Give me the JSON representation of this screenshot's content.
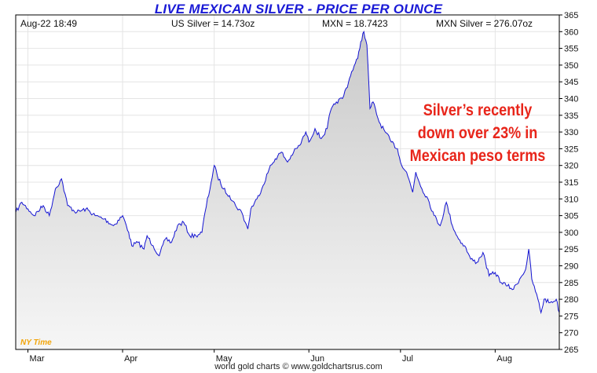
{
  "header": {
    "date_time": "Aug-22  18:49",
    "us_silver": "US Silver = 14.73oz",
    "mxn_rate": "MXN = 18.7423",
    "mxn_silver": "MXN Silver = 276.07oz"
  },
  "annotation": {
    "line1": "Silver’s recently",
    "line2": "down over 23% in",
    "line3": "Mexican peso terms"
  },
  "timezone_label": "NY Time",
  "credit": "world gold charts © www.goldchartsrus.com",
  "colors": {
    "title": "#1a1ad6",
    "line": "#1414d2",
    "area_fill": "#d9d9d9",
    "annotation": "#e8251a",
    "timezone_label": "#f2a50a"
  },
  "chart_data": {
    "type": "line",
    "title": "LIVE MEXICAN SILVER - PRICE PER OUNCE",
    "ylim": [
      265,
      365
    ],
    "y_ticks": [
      265,
      270,
      275,
      280,
      285,
      290,
      295,
      300,
      305,
      310,
      315,
      320,
      325,
      330,
      335,
      340,
      345,
      350,
      355,
      360,
      365
    ],
    "x_domain": [
      "2016-02-26",
      "2016-08-22"
    ],
    "x_ticks": [
      {
        "label": "Mar",
        "date": "2016-03-01"
      },
      {
        "label": "Apr",
        "date": "2016-04-01"
      },
      {
        "label": "May",
        "date": "2016-05-01"
      },
      {
        "label": "Jun",
        "date": "2016-06-01"
      },
      {
        "label": "Jul",
        "date": "2016-07-01"
      },
      {
        "label": "Aug",
        "date": "2016-08-01"
      }
    ],
    "grid": true,
    "area_fill": true,
    "series": [
      {
        "points": [
          [
            "2016-02-26",
            306
          ],
          [
            "2016-02-28",
            309
          ],
          [
            "2016-03-01",
            307
          ],
          [
            "2016-03-03",
            305
          ],
          [
            "2016-03-06",
            308
          ],
          [
            "2016-03-08",
            305
          ],
          [
            "2016-03-10",
            313
          ],
          [
            "2016-03-12",
            316
          ],
          [
            "2016-03-14",
            308
          ],
          [
            "2016-03-17",
            306
          ],
          [
            "2016-03-20",
            307
          ],
          [
            "2016-03-23",
            305
          ],
          [
            "2016-03-26",
            304
          ],
          [
            "2016-03-29",
            302
          ],
          [
            "2016-04-01",
            305
          ],
          [
            "2016-04-03",
            300
          ],
          [
            "2016-04-04",
            296
          ],
          [
            "2016-04-06",
            297
          ],
          [
            "2016-04-08",
            295
          ],
          [
            "2016-04-09",
            299
          ],
          [
            "2016-04-11",
            296
          ],
          [
            "2016-04-13",
            293
          ],
          [
            "2016-04-15",
            298
          ],
          [
            "2016-04-17",
            297
          ],
          [
            "2016-04-19",
            302
          ],
          [
            "2016-04-21",
            303
          ],
          [
            "2016-04-23",
            299
          ],
          [
            "2016-04-25",
            299
          ],
          [
            "2016-04-27",
            300
          ],
          [
            "2016-04-28",
            306
          ],
          [
            "2016-04-30",
            315
          ],
          [
            "2016-05-01",
            320
          ],
          [
            "2016-05-02",
            317
          ],
          [
            "2016-05-04",
            313
          ],
          [
            "2016-05-06",
            311
          ],
          [
            "2016-05-08",
            308
          ],
          [
            "2016-05-10",
            306
          ],
          [
            "2016-05-12",
            301
          ],
          [
            "2016-05-13",
            307
          ],
          [
            "2016-05-15",
            310
          ],
          [
            "2016-05-17",
            314
          ],
          [
            "2016-05-19",
            319
          ],
          [
            "2016-05-21",
            322
          ],
          [
            "2016-05-23",
            324
          ],
          [
            "2016-05-25",
            321
          ],
          [
            "2016-05-27",
            324
          ],
          [
            "2016-05-29",
            326
          ],
          [
            "2016-05-31",
            330
          ],
          [
            "2016-06-01",
            327
          ],
          [
            "2016-06-03",
            331
          ],
          [
            "2016-06-05",
            328
          ],
          [
            "2016-06-07",
            331
          ],
          [
            "2016-06-08",
            336
          ],
          [
            "2016-06-10",
            339
          ],
          [
            "2016-06-12",
            340
          ],
          [
            "2016-06-14",
            345
          ],
          [
            "2016-06-15",
            348
          ],
          [
            "2016-06-17",
            352
          ],
          [
            "2016-06-18",
            357
          ],
          [
            "2016-06-19",
            360
          ],
          [
            "2016-06-20",
            356
          ],
          [
            "2016-06-21",
            337
          ],
          [
            "2016-06-22",
            339
          ],
          [
            "2016-06-24",
            333
          ],
          [
            "2016-06-26",
            330
          ],
          [
            "2016-06-28",
            327
          ],
          [
            "2016-06-30",
            325
          ],
          [
            "2016-07-01",
            321
          ],
          [
            "2016-07-03",
            318
          ],
          [
            "2016-07-05",
            312
          ],
          [
            "2016-07-06",
            318
          ],
          [
            "2016-07-08",
            313
          ],
          [
            "2016-07-10",
            310
          ],
          [
            "2016-07-12",
            305
          ],
          [
            "2016-07-14",
            302
          ],
          [
            "2016-07-16",
            309
          ],
          [
            "2016-07-18",
            302
          ],
          [
            "2016-07-20",
            298
          ],
          [
            "2016-07-22",
            296
          ],
          [
            "2016-07-24",
            292
          ],
          [
            "2016-07-26",
            291
          ],
          [
            "2016-07-28",
            294
          ],
          [
            "2016-07-30",
            287
          ],
          [
            "2016-08-01",
            288
          ],
          [
            "2016-08-03",
            285
          ],
          [
            "2016-08-05",
            284
          ],
          [
            "2016-08-07",
            283
          ],
          [
            "2016-08-09",
            286
          ],
          [
            "2016-08-11",
            289
          ],
          [
            "2016-08-12",
            295
          ],
          [
            "2016-08-13",
            286
          ],
          [
            "2016-08-15",
            280
          ],
          [
            "2016-08-16",
            276
          ],
          [
            "2016-08-17",
            280
          ],
          [
            "2016-08-19",
            279
          ],
          [
            "2016-08-21",
            280
          ],
          [
            "2016-08-22",
            276
          ]
        ]
      }
    ]
  }
}
